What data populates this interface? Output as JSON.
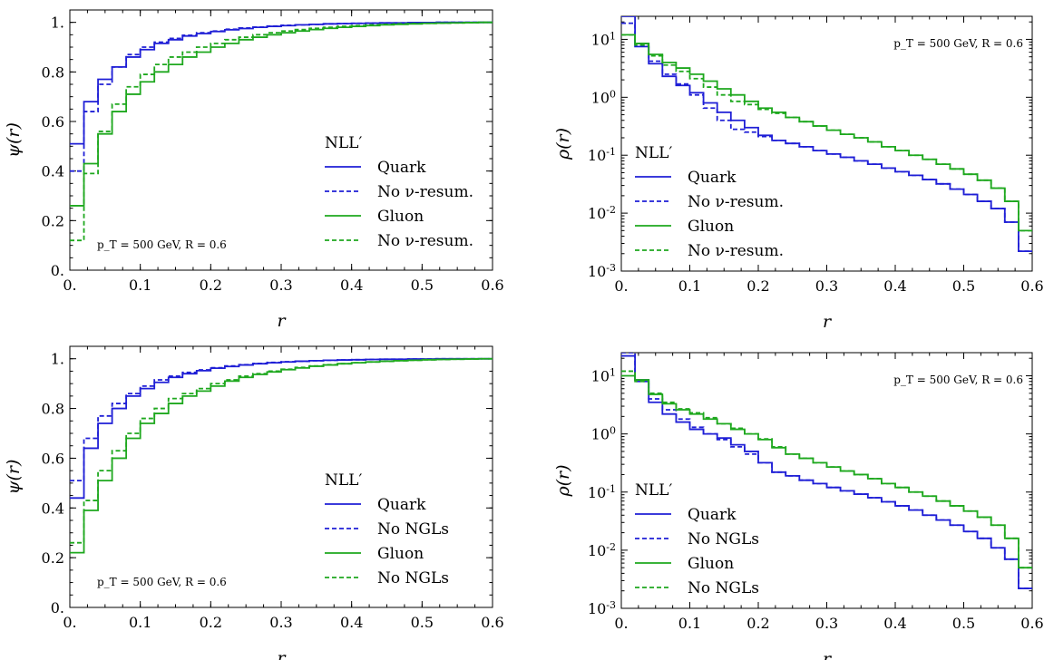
{
  "colors": {
    "quark": "#1f1fd6",
    "gluon": "#1ea81e"
  },
  "chart_data": [
    {
      "type": "line",
      "panel": "top-left",
      "ylog": false,
      "xlabel": "r",
      "ylabel": "ψ(r)",
      "xlim": [
        0,
        0.6
      ],
      "ylim": [
        0,
        1.05
      ],
      "xticks": [
        0,
        0.1,
        0.2,
        0.3,
        0.4,
        0.5,
        0.6
      ],
      "xtick_labels": [
        "0.",
        "0.1",
        "0.2",
        "0.3",
        "0.4",
        "0.5",
        "0.6"
      ],
      "yticks": [
        0,
        0.2,
        0.4,
        0.6,
        0.8,
        1.0
      ],
      "ytick_labels": [
        "0.",
        "0.2",
        "0.4",
        "0.6",
        "0.8",
        "1."
      ],
      "annotation": "p_T = 500 GeV, R = 0.6",
      "annotation_position": "bottom-left",
      "legend_title": "NLL′",
      "legend_position": "lower-right",
      "x_edges": [
        0,
        0.02,
        0.04,
        0.06,
        0.08,
        0.1,
        0.12,
        0.14,
        0.16,
        0.18,
        0.2,
        0.22,
        0.24,
        0.26,
        0.28,
        0.3,
        0.32,
        0.34,
        0.36,
        0.38,
        0.4,
        0.42,
        0.44,
        0.46,
        0.48,
        0.5,
        0.52,
        0.54,
        0.56,
        0.58,
        0.6
      ],
      "series": [
        {
          "name": "Quark",
          "color": "quark",
          "dash": "solid",
          "values": [
            0.51,
            0.68,
            0.77,
            0.82,
            0.86,
            0.89,
            0.915,
            0.93,
            0.945,
            0.955,
            0.963,
            0.97,
            0.975,
            0.98,
            0.984,
            0.987,
            0.99,
            0.992,
            0.994,
            0.995,
            0.996,
            0.997,
            0.998,
            0.998,
            0.999,
            0.999,
            1.0,
            1.0,
            1.0,
            1.0
          ]
        },
        {
          "name": "No ν-resum.",
          "color": "quark",
          "dash": "dashed",
          "values": [
            0.4,
            0.64,
            0.75,
            0.82,
            0.87,
            0.9,
            0.92,
            0.935,
            0.948,
            0.958,
            0.965,
            0.972,
            0.977,
            0.981,
            0.985,
            0.988,
            0.99,
            0.992,
            0.994,
            0.995,
            0.996,
            0.997,
            0.998,
            0.998,
            0.999,
            0.999,
            1.0,
            1.0,
            1.0,
            1.0
          ]
        },
        {
          "name": "Gluon",
          "color": "gluon",
          "dash": "solid",
          "values": [
            0.26,
            0.43,
            0.55,
            0.64,
            0.71,
            0.76,
            0.8,
            0.83,
            0.86,
            0.88,
            0.9,
            0.915,
            0.93,
            0.94,
            0.95,
            0.958,
            0.965,
            0.971,
            0.976,
            0.98,
            0.984,
            0.987,
            0.99,
            0.992,
            0.994,
            0.996,
            0.997,
            0.998,
            0.999,
            1.0
          ]
        },
        {
          "name": "No ν-resum.",
          "color": "gluon",
          "dash": "dashed",
          "values": [
            0.12,
            0.39,
            0.56,
            0.67,
            0.74,
            0.79,
            0.83,
            0.86,
            0.88,
            0.9,
            0.915,
            0.93,
            0.94,
            0.95,
            0.958,
            0.965,
            0.971,
            0.976,
            0.98,
            0.984,
            0.987,
            0.99,
            0.992,
            0.994,
            0.995,
            0.996,
            0.997,
            0.998,
            0.999,
            1.0
          ]
        }
      ]
    },
    {
      "type": "line",
      "panel": "top-right",
      "ylog": true,
      "xlabel": "r",
      "ylabel": "ρ(r)",
      "xlim": [
        0,
        0.6
      ],
      "ylim": [
        0.001,
        25
      ],
      "xticks": [
        0,
        0.1,
        0.2,
        0.3,
        0.4,
        0.5,
        0.6
      ],
      "xtick_labels": [
        "0.",
        "0.1",
        "0.2",
        "0.3",
        "0.4",
        "0.5",
        "0.6"
      ],
      "yticks": [
        0.001,
        0.01,
        0.1,
        1,
        10
      ],
      "ytick_labels": [
        [
          "10",
          "-3"
        ],
        [
          "10",
          "-2"
        ],
        [
          "10",
          "-1"
        ],
        [
          "10",
          "0"
        ],
        [
          "10",
          "1"
        ]
      ],
      "annotation": "p_T = 500 GeV, R = 0.6",
      "annotation_position": "top-right",
      "legend_title": "NLL′",
      "legend_position": "lower-left",
      "x_edges": [
        0,
        0.02,
        0.04,
        0.06,
        0.08,
        0.1,
        0.12,
        0.14,
        0.16,
        0.18,
        0.2,
        0.22,
        0.24,
        0.26,
        0.28,
        0.3,
        0.32,
        0.34,
        0.36,
        0.38,
        0.4,
        0.42,
        0.44,
        0.46,
        0.48,
        0.5,
        0.52,
        0.54,
        0.56,
        0.58,
        0.6
      ],
      "series": [
        {
          "name": "Quark",
          "color": "quark",
          "dash": "solid",
          "values": [
            25,
            7.5,
            3.8,
            2.3,
            1.6,
            1.2,
            0.8,
            0.55,
            0.4,
            0.3,
            0.22,
            0.18,
            0.16,
            0.14,
            0.12,
            0.105,
            0.092,
            0.08,
            0.07,
            0.06,
            0.052,
            0.045,
            0.038,
            0.032,
            0.026,
            0.021,
            0.016,
            0.012,
            0.007,
            0.0022
          ]
        },
        {
          "name": "No ν-resum.",
          "color": "quark",
          "dash": "dashed",
          "values": [
            19,
            8.5,
            4.2,
            2.5,
            1.7,
            1.1,
            0.65,
            0.4,
            0.28,
            0.25,
            0.21,
            0.18,
            0.16,
            0.14,
            0.12,
            0.105,
            0.092,
            0.08,
            0.07,
            0.06,
            0.052,
            0.045,
            0.038,
            0.032,
            0.026,
            0.021,
            0.016,
            0.012,
            0.007,
            0.0022
          ]
        },
        {
          "name": "Gluon",
          "color": "gluon",
          "dash": "solid",
          "values": [
            12,
            8.5,
            5.5,
            4.0,
            3.2,
            2.5,
            1.9,
            1.4,
            1.1,
            0.85,
            0.65,
            0.55,
            0.45,
            0.38,
            0.32,
            0.27,
            0.23,
            0.2,
            0.17,
            0.14,
            0.12,
            0.1,
            0.085,
            0.07,
            0.058,
            0.047,
            0.037,
            0.027,
            0.016,
            0.005
          ]
        },
        {
          "name": "No ν-resum.",
          "color": "gluon",
          "dash": "dashed",
          "values": [
            12,
            8.0,
            5.2,
            3.6,
            2.8,
            2.1,
            1.5,
            1.1,
            0.85,
            0.75,
            0.62,
            0.53,
            0.45,
            0.38,
            0.32,
            0.27,
            0.23,
            0.2,
            0.17,
            0.14,
            0.12,
            0.1,
            0.085,
            0.07,
            0.058,
            0.047,
            0.037,
            0.027,
            0.016,
            0.005
          ]
        }
      ]
    },
    {
      "type": "line",
      "panel": "bottom-left",
      "ylog": false,
      "xlabel": "r",
      "ylabel": "ψ(r)",
      "xlim": [
        0,
        0.6
      ],
      "ylim": [
        0,
        1.05
      ],
      "xticks": [
        0,
        0.1,
        0.2,
        0.3,
        0.4,
        0.5,
        0.6
      ],
      "xtick_labels": [
        "0.",
        "0.1",
        "0.2",
        "0.3",
        "0.4",
        "0.5",
        "0.6"
      ],
      "yticks": [
        0,
        0.2,
        0.4,
        0.6,
        0.8,
        1.0
      ],
      "ytick_labels": [
        "0.",
        "0.2",
        "0.4",
        "0.6",
        "0.8",
        "1."
      ],
      "annotation": "p_T = 500 GeV, R = 0.6",
      "annotation_position": "bottom-left",
      "legend_title": "NLL′",
      "legend_position": "lower-right",
      "x_edges": [
        0,
        0.02,
        0.04,
        0.06,
        0.08,
        0.1,
        0.12,
        0.14,
        0.16,
        0.18,
        0.2,
        0.22,
        0.24,
        0.26,
        0.28,
        0.3,
        0.32,
        0.34,
        0.36,
        0.38,
        0.4,
        0.42,
        0.44,
        0.46,
        0.48,
        0.5,
        0.52,
        0.54,
        0.56,
        0.58,
        0.6
      ],
      "series": [
        {
          "name": "Quark",
          "color": "quark",
          "dash": "solid",
          "values": [
            0.44,
            0.64,
            0.74,
            0.8,
            0.85,
            0.88,
            0.905,
            0.925,
            0.94,
            0.952,
            0.962,
            0.969,
            0.975,
            0.98,
            0.984,
            0.987,
            0.99,
            0.992,
            0.994,
            0.995,
            0.996,
            0.997,
            0.998,
            0.998,
            0.999,
            0.999,
            1.0,
            1.0,
            1.0,
            1.0
          ]
        },
        {
          "name": "No NGLs",
          "color": "quark",
          "dash": "dashed",
          "values": [
            0.51,
            0.68,
            0.77,
            0.82,
            0.86,
            0.89,
            0.915,
            0.93,
            0.945,
            0.955,
            0.964,
            0.971,
            0.976,
            0.981,
            0.985,
            0.988,
            0.99,
            0.992,
            0.994,
            0.995,
            0.996,
            0.997,
            0.998,
            0.998,
            0.999,
            0.999,
            1.0,
            1.0,
            1.0,
            1.0
          ]
        },
        {
          "name": "Gluon",
          "color": "gluon",
          "dash": "solid",
          "values": [
            0.22,
            0.39,
            0.51,
            0.6,
            0.68,
            0.74,
            0.78,
            0.82,
            0.85,
            0.87,
            0.89,
            0.91,
            0.925,
            0.937,
            0.947,
            0.956,
            0.963,
            0.97,
            0.975,
            0.98,
            0.984,
            0.987,
            0.99,
            0.992,
            0.994,
            0.996,
            0.997,
            0.998,
            0.999,
            1.0
          ]
        },
        {
          "name": "No NGLs",
          "color": "gluon",
          "dash": "dashed",
          "values": [
            0.26,
            0.43,
            0.55,
            0.63,
            0.7,
            0.76,
            0.8,
            0.84,
            0.86,
            0.88,
            0.9,
            0.915,
            0.93,
            0.94,
            0.95,
            0.958,
            0.965,
            0.971,
            0.976,
            0.98,
            0.984,
            0.987,
            0.99,
            0.992,
            0.994,
            0.996,
            0.997,
            0.998,
            0.999,
            1.0
          ]
        }
      ]
    },
    {
      "type": "line",
      "panel": "bottom-right",
      "ylog": true,
      "xlabel": "r",
      "ylabel": "ρ(r)",
      "xlim": [
        0,
        0.6
      ],
      "ylim": [
        0.001,
        25
      ],
      "xticks": [
        0,
        0.1,
        0.2,
        0.3,
        0.4,
        0.5,
        0.6
      ],
      "xtick_labels": [
        "0.",
        "0.1",
        "0.2",
        "0.3",
        "0.4",
        "0.5",
        "0.6"
      ],
      "yticks": [
        0.001,
        0.01,
        0.1,
        1,
        10
      ],
      "ytick_labels": [
        [
          "10",
          "-3"
        ],
        [
          "10",
          "-2"
        ],
        [
          "10",
          "-1"
        ],
        [
          "10",
          "0"
        ],
        [
          "10",
          "1"
        ]
      ],
      "annotation": "p_T = 500 GeV, R = 0.6",
      "annotation_position": "top-right",
      "legend_title": "NLL′",
      "legend_position": "lower-left",
      "x_edges": [
        0,
        0.02,
        0.04,
        0.06,
        0.08,
        0.1,
        0.12,
        0.14,
        0.16,
        0.18,
        0.2,
        0.22,
        0.24,
        0.26,
        0.28,
        0.3,
        0.32,
        0.34,
        0.36,
        0.38,
        0.4,
        0.42,
        0.44,
        0.46,
        0.48,
        0.5,
        0.52,
        0.54,
        0.56,
        0.58,
        0.6
      ],
      "series": [
        {
          "name": "Quark",
          "color": "quark",
          "dash": "solid",
          "values": [
            22,
            8.5,
            3.5,
            2.2,
            1.6,
            1.2,
            1.0,
            0.85,
            0.65,
            0.5,
            0.32,
            0.22,
            0.19,
            0.16,
            0.14,
            0.12,
            0.105,
            0.092,
            0.08,
            0.068,
            0.058,
            0.049,
            0.04,
            0.033,
            0.027,
            0.021,
            0.016,
            0.011,
            0.007,
            0.0022
          ]
        },
        {
          "name": "No NGLs",
          "color": "quark",
          "dash": "dashed",
          "values": [
            25,
            8.0,
            4.0,
            2.6,
            1.8,
            1.3,
            1.0,
            0.8,
            0.6,
            0.45,
            0.32,
            0.22,
            0.19,
            0.16,
            0.14,
            0.12,
            0.105,
            0.092,
            0.08,
            0.068,
            0.058,
            0.049,
            0.04,
            0.033,
            0.027,
            0.021,
            0.016,
            0.011,
            0.007,
            0.0022
          ]
        },
        {
          "name": "Gluon",
          "color": "gluon",
          "dash": "solid",
          "values": [
            10,
            8.5,
            4.8,
            3.3,
            2.6,
            2.2,
            1.8,
            1.5,
            1.2,
            1.0,
            0.8,
            0.58,
            0.45,
            0.38,
            0.32,
            0.27,
            0.23,
            0.2,
            0.17,
            0.14,
            0.12,
            0.1,
            0.085,
            0.07,
            0.058,
            0.047,
            0.037,
            0.027,
            0.016,
            0.005
          ]
        },
        {
          "name": "No NGLs",
          "color": "gluon",
          "dash": "dashed",
          "values": [
            12,
            8.0,
            5.0,
            3.5,
            2.7,
            2.3,
            1.9,
            1.5,
            1.25,
            1.0,
            0.82,
            0.6,
            0.45,
            0.38,
            0.32,
            0.27,
            0.23,
            0.2,
            0.17,
            0.14,
            0.12,
            0.1,
            0.085,
            0.07,
            0.058,
            0.047,
            0.037,
            0.027,
            0.016,
            0.005
          ]
        }
      ]
    }
  ]
}
